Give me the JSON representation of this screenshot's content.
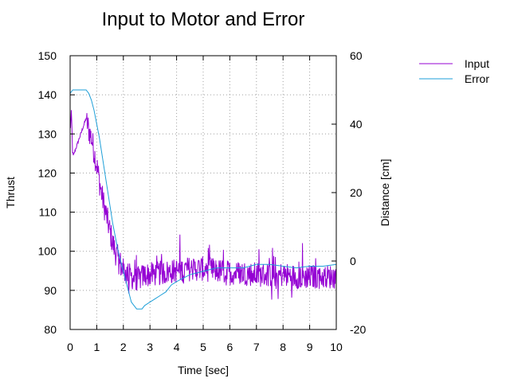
{
  "chart_data": {
    "type": "line",
    "title": "Input to Motor and Error",
    "xlabel": "Time [sec]",
    "ylabel": "Thrust",
    "y2label": "Distance [cm]",
    "xlim": [
      0,
      10
    ],
    "ylim": [
      80,
      150
    ],
    "y2lim": [
      -20,
      60
    ],
    "xticks": [
      0,
      1,
      2,
      3,
      4,
      5,
      6,
      7,
      8,
      9,
      10
    ],
    "yticks": [
      80,
      90,
      100,
      110,
      120,
      130,
      140,
      150
    ],
    "y2ticks": [
      -20,
      0,
      20,
      40,
      60
    ],
    "grid": true,
    "legend_position": "top-right, outside plot",
    "series": [
      {
        "name": "Input",
        "axis": "left",
        "color": "#9400d3",
        "noisy": true,
        "x": [
          0,
          0.05,
          0.1,
          0.6,
          0.7,
          0.8,
          1.0,
          1.2,
          1.4,
          1.6,
          1.8,
          2.0,
          2.2,
          2.4,
          2.6,
          2.8,
          3.0,
          3.5,
          4.0,
          4.5,
          5.0,
          5.5,
          6.0,
          6.5,
          7.0,
          7.5,
          8.0,
          8.5,
          9.0,
          9.5,
          10.0
        ],
        "values": [
          131,
          135,
          124,
          134,
          131,
          129,
          122,
          114,
          108,
          102,
          98,
          95,
          94,
          93,
          93,
          94,
          94,
          94.5,
          95,
          95.5,
          95.5,
          95,
          94.5,
          94.5,
          94,
          94,
          94,
          93.5,
          93.5,
          93.5,
          93.5
        ]
      },
      {
        "name": "Error",
        "axis": "right",
        "color": "#1e9fd8",
        "noisy": false,
        "x": [
          0,
          0.1,
          0.6,
          0.7,
          0.8,
          0.9,
          1.0,
          1.1,
          1.2,
          1.3,
          1.4,
          1.5,
          1.6,
          1.7,
          1.8,
          1.9,
          2.0,
          2.1,
          2.2,
          2.3,
          2.4,
          2.5,
          2.6,
          2.7,
          2.8,
          3.0,
          3.2,
          3.4,
          3.6,
          3.8,
          4.0,
          4.5,
          5.0,
          5.5,
          6.0,
          6.5,
          7.0,
          7.5,
          8.0,
          8.5,
          9.0,
          9.5,
          10.0
        ],
        "values": [
          49,
          50,
          50,
          49,
          47,
          44,
          40,
          36,
          31,
          26,
          21,
          16,
          11,
          7,
          3,
          0,
          -3,
          -6,
          -9,
          -12,
          -13,
          -14,
          -14,
          -14,
          -13,
          -12,
          -11,
          -10,
          -9,
          -7,
          -6,
          -4,
          -3,
          -2,
          -2,
          -2,
          -1,
          -1,
          -1.5,
          -2,
          -1.5,
          -1.5,
          -1
        ]
      }
    ]
  }
}
